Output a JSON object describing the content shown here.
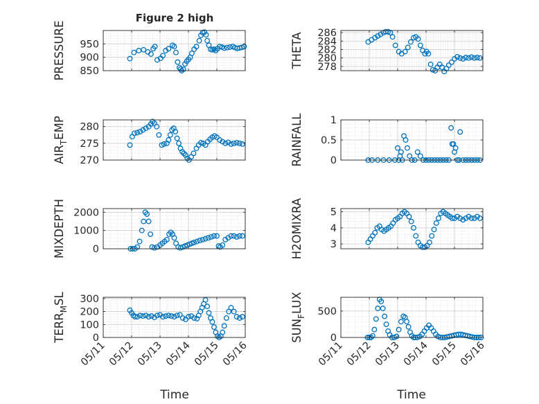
{
  "title": "Figure 2 high",
  "xlabel": "Time",
  "x_ticks": [
    "05/11",
    "05/12",
    "05/13",
    "05/14",
    "05/15",
    "05/16"
  ],
  "chart_data": [
    {
      "type": "scatter",
      "title": "Figure 2 high",
      "ylabel": "PRESSURE",
      "ylabel_sub": "",
      "ylabel_post": "",
      "ylim": [
        850,
        1000
      ],
      "yticks": [
        850,
        900,
        950
      ],
      "xlim": [
        "05/11",
        "05/16"
      ],
      "x_points": [
        [
          0.94,
          1.08,
          1.25,
          1.42,
          1.57,
          1.68,
          1.76,
          1.82,
          1.9,
          2.02,
          2.1,
          2.2,
          2.3,
          2.44,
          2.5,
          2.56,
          2.62,
          2.68,
          2.72,
          2.76,
          2.82,
          2.88,
          2.94,
          3.0,
          3.06,
          3.12,
          3.2,
          3.28,
          3.38,
          3.44,
          3.5,
          3.56,
          3.62,
          3.66,
          3.72,
          3.78,
          3.84,
          3.9,
          3.96,
          4.02,
          4.1,
          4.18,
          4.26,
          4.36,
          4.46,
          4.56,
          4.64,
          4.72,
          4.8,
          4.88,
          4.96
        ]
      ],
      "y_points": [
        [
          895,
          918,
          925,
          928,
          920,
          912,
          932,
          940,
          890,
          896,
          906,
          925,
          932,
          945,
          940,
          918,
          882,
          862,
          856,
          850,
          855,
          875,
          885,
          892,
          900,
          915,
          930,
          940,
          962,
          982,
          992,
          994,
          984,
          962,
          945,
          930,
          928,
          930,
          925,
          932,
          940,
          938,
          934,
          936,
          938,
          940,
          936,
          933,
          935,
          937,
          940
        ]
      ]
    },
    {
      "type": "scatter",
      "ylabel": "THETA",
      "ylabel_sub": "",
      "ylabel_post": "",
      "ylim": [
        277,
        286.5
      ],
      "yticks": [
        278,
        280,
        282,
        284,
        286
      ],
      "xlim": [
        "05/11",
        "05/16"
      ],
      "x_points": [
        [
          0.96,
          1.08,
          1.2,
          1.3,
          1.4,
          1.5,
          1.58,
          1.66,
          1.74,
          1.82,
          1.92,
          2.04,
          2.14,
          2.26,
          2.36,
          2.46,
          2.56,
          2.64,
          2.72,
          2.8,
          2.88,
          2.96,
          3.02,
          3.08,
          3.16,
          3.24,
          3.32,
          3.4,
          3.48,
          3.56,
          3.64,
          3.72,
          3.8,
          3.9,
          4.0,
          4.1,
          4.2,
          4.3,
          4.4,
          4.5,
          4.6,
          4.7,
          4.8,
          4.9
        ]
      ],
      "y_points": [
        [
          283.8,
          284.3,
          284.8,
          285.2,
          285.6,
          286.0,
          286.2,
          286.2,
          286.0,
          285.0,
          283.0,
          281.5,
          281.0,
          281.5,
          282.5,
          283.8,
          284.8,
          285.0,
          284.5,
          283.0,
          281.8,
          281.0,
          281.5,
          281.0,
          278.5,
          277.2,
          277.0,
          277.8,
          278.5,
          277.8,
          276.8,
          277.5,
          278.3,
          279.0,
          279.8,
          280.3,
          280.0,
          279.8,
          280.1,
          280.0,
          280.2,
          280.0,
          280.1,
          280.0
        ]
      ]
    },
    {
      "type": "scatter",
      "ylabel": "AIR",
      "ylabel_sub": "T",
      "ylabel_post": "EMP",
      "ylim": [
        270,
        282
      ],
      "yticks": [
        270,
        275,
        280
      ],
      "xlim": [
        "05/11",
        "05/16"
      ],
      "x_points": [
        [
          0.94,
          1.02,
          1.1,
          1.2,
          1.3,
          1.4,
          1.5,
          1.6,
          1.68,
          1.74,
          1.8,
          1.88,
          1.96,
          2.06,
          2.14,
          2.24,
          2.3,
          2.36,
          2.42,
          2.48,
          2.54,
          2.6,
          2.66,
          2.72,
          2.78,
          2.84,
          2.9,
          2.96,
          3.02,
          3.1,
          3.18,
          3.28,
          3.36,
          3.44,
          3.52,
          3.6,
          3.68,
          3.76,
          3.84,
          3.92,
          4.0,
          4.1,
          4.2,
          4.3,
          4.4,
          4.5,
          4.6,
          4.7,
          4.8,
          4.9
        ]
      ],
      "y_points": [
        [
          274.5,
          277.0,
          278.0,
          278.2,
          278.5,
          279.0,
          279.5,
          280.0,
          280.8,
          281.5,
          281.0,
          280.0,
          277.5,
          274.5,
          274.8,
          275.0,
          276.0,
          277.5,
          279.0,
          279.5,
          278.5,
          276.5,
          275.0,
          273.5,
          272.5,
          272.0,
          271.5,
          270.5,
          270.0,
          271.0,
          272.0,
          273.5,
          274.5,
          275.2,
          275.0,
          274.5,
          275.5,
          276.2,
          276.8,
          277.2,
          276.8,
          276.0,
          275.5,
          275.0,
          275.3,
          274.8,
          275.0,
          275.2,
          275.0,
          274.8
        ]
      ]
    },
    {
      "type": "scatter",
      "ylabel": "RAINFALL",
      "ylabel_sub": "",
      "ylabel_post": "",
      "ylim": [
        0,
        1
      ],
      "yticks": [
        0,
        0.5,
        1
      ],
      "xlim": [
        "05/11",
        "05/16"
      ],
      "x_points": [
        [
          0.96,
          1.1,
          1.3,
          1.5,
          1.7,
          1.9,
          2.0,
          2.04,
          2.08,
          2.12,
          2.16,
          2.22,
          2.28,
          2.34,
          2.42,
          2.5,
          2.6,
          2.7,
          2.8,
          2.9,
          3.0,
          3.1,
          3.2,
          3.3,
          3.4,
          3.5,
          3.6,
          3.7,
          3.8,
          3.88,
          3.92,
          3.96,
          4.0,
          4.04,
          4.1,
          4.16,
          4.2,
          4.3,
          4.4,
          4.5,
          4.6,
          4.7,
          4.8,
          4.9
        ]
      ],
      "y_points": [
        [
          0,
          0,
          0,
          0,
          0,
          0,
          0.3,
          0,
          0.1,
          0.2,
          0,
          0.6,
          0.5,
          0.3,
          0.1,
          0,
          0,
          0.2,
          0.1,
          0,
          0,
          0,
          0,
          0,
          0,
          0,
          0,
          0,
          0,
          0.8,
          0.4,
          0.4,
          0.2,
          0.3,
          0,
          0,
          0.7,
          0,
          0,
          0,
          0,
          0,
          0,
          0
        ]
      ]
    },
    {
      "type": "scatter",
      "ylabel": "MIXDEPTH",
      "ylabel_sub": "",
      "ylabel_post": "",
      "ylim": [
        0,
        2200
      ],
      "yticks": [
        0,
        1000,
        2000
      ],
      "xlim": [
        "05/11",
        "05/16"
      ],
      "x_points": [
        [
          0.96,
          1.04,
          1.12,
          1.2,
          1.28,
          1.36,
          1.42,
          1.48,
          1.54,
          1.6,
          1.66,
          1.72,
          1.8,
          1.9,
          2.0,
          2.08,
          2.16,
          2.24,
          2.32,
          2.38,
          2.44,
          2.5,
          2.56,
          2.64,
          2.72,
          2.8,
          2.88,
          2.96,
          3.04,
          3.12,
          3.2,
          3.3,
          3.4,
          3.5,
          3.6,
          3.7,
          3.8,
          3.9,
          4.0,
          4.06,
          4.12,
          4.2,
          4.3,
          4.4,
          4.5,
          4.6,
          4.7,
          4.8,
          4.9
        ]
      ],
      "y_points": [
        [
          0,
          0,
          0,
          100,
          400,
          1000,
          1500,
          2000,
          1900,
          1500,
          800,
          100,
          50,
          100,
          200,
          300,
          400,
          500,
          800,
          900,
          800,
          600,
          300,
          100,
          50,
          100,
          150,
          200,
          250,
          300,
          350,
          400,
          450,
          500,
          550,
          600,
          650,
          700,
          700,
          150,
          100,
          200,
          500,
          600,
          700,
          700,
          650,
          700,
          700
        ]
      ]
    },
    {
      "type": "scatter",
      "ylabel": "H2OMIXRA",
      "ylabel_sub": "",
      "ylabel_post": "",
      "ylim": [
        2.7,
        5.2
      ],
      "yticks": [
        3,
        4,
        5
      ],
      "xlim": [
        "05/11",
        "05/16"
      ],
      "x_points": [
        [
          0.96,
          1.04,
          1.12,
          1.2,
          1.28,
          1.36,
          1.44,
          1.52,
          1.6,
          1.68,
          1.76,
          1.84,
          1.92,
          2.0,
          2.08,
          2.16,
          2.24,
          2.32,
          2.4,
          2.48,
          2.56,
          2.64,
          2.72,
          2.8,
          2.88,
          2.96,
          3.04,
          3.12,
          3.2,
          3.28,
          3.36,
          3.44,
          3.52,
          3.6,
          3.68,
          3.76,
          3.84,
          3.92,
          4.0,
          4.1,
          4.2,
          4.3,
          4.4,
          4.5,
          4.6,
          4.7,
          4.8,
          4.9
        ]
      ],
      "y_points": [
        [
          3.1,
          3.3,
          3.5,
          3.7,
          4.0,
          4.1,
          3.9,
          3.8,
          3.9,
          4.0,
          4.1,
          4.3,
          4.5,
          4.6,
          4.7,
          4.9,
          5.0,
          4.9,
          4.7,
          4.4,
          4.0,
          3.5,
          3.1,
          2.9,
          2.8,
          2.8,
          2.9,
          3.1,
          3.5,
          3.9,
          4.3,
          4.6,
          4.9,
          5.0,
          4.9,
          4.8,
          4.7,
          4.6,
          4.6,
          4.7,
          4.6,
          4.5,
          4.6,
          4.7,
          4.6,
          4.6,
          4.7,
          4.6
        ]
      ]
    },
    {
      "type": "scatter",
      "ylabel": "TERR",
      "ylabel_sub": "M",
      "ylabel_post": "SL",
      "ylim": [
        0,
        310
      ],
      "yticks": [
        0,
        100,
        200,
        300
      ],
      "xlim": [
        "05/11",
        "05/16"
      ],
      "x_points": [
        [
          0.94,
          1.0,
          1.06,
          1.12,
          1.2,
          1.3,
          1.4,
          1.5,
          1.6,
          1.7,
          1.8,
          1.9,
          2.0,
          2.1,
          2.2,
          2.3,
          2.4,
          2.5,
          2.6,
          2.7,
          2.8,
          2.9,
          3.0,
          3.1,
          3.2,
          3.3,
          3.36,
          3.42,
          3.48,
          3.54,
          3.6,
          3.66,
          3.72,
          3.78,
          3.84,
          3.9,
          3.96,
          4.02,
          4.08,
          4.14,
          4.2,
          4.26,
          4.34,
          4.42,
          4.5,
          4.6,
          4.7,
          4.8,
          4.9
        ]
      ],
      "y_points": [
        [
          210,
          190,
          170,
          160,
          160,
          170,
          165,
          170,
          160,
          165,
          155,
          170,
          175,
          160,
          165,
          170,
          165,
          160,
          170,
          175,
          150,
          140,
          160,
          165,
          150,
          145,
          170,
          200,
          230,
          260,
          290,
          240,
          190,
          150,
          120,
          80,
          40,
          10,
          0,
          10,
          40,
          90,
          150,
          200,
          230,
          200,
          160,
          150,
          160
        ]
      ]
    },
    {
      "type": "scatter",
      "ylabel": "SUN",
      "ylabel_sub": "F",
      "ylabel_post": "LUX",
      "ylim": [
        0,
        760
      ],
      "yticks": [
        0,
        500
      ],
      "xlim": [
        "05/11",
        "05/16"
      ],
      "x_points": [
        [
          0.94,
          1.0,
          1.06,
          1.12,
          1.18,
          1.24,
          1.3,
          1.36,
          1.42,
          1.48,
          1.54,
          1.6,
          1.66,
          1.72,
          1.8,
          1.88,
          1.96,
          2.04,
          2.12,
          2.2,
          2.26,
          2.32,
          2.38,
          2.44,
          2.5,
          2.56,
          2.62,
          2.7,
          2.78,
          2.86,
          2.94,
          3.02,
          3.1,
          3.18,
          3.26,
          3.34,
          3.42,
          3.5,
          3.58,
          3.66,
          3.74,
          3.82,
          3.9,
          3.98,
          4.06,
          4.14,
          4.22,
          4.3,
          4.38,
          4.46,
          4.54,
          4.62,
          4.7,
          4.78,
          4.86,
          4.94
        ]
      ],
      "y_points": [
        [
          0,
          0,
          0,
          30,
          150,
          350,
          550,
          720,
          680,
          550,
          400,
          250,
          120,
          50,
          0,
          0,
          20,
          150,
          300,
          400,
          380,
          300,
          200,
          100,
          30,
          0,
          0,
          0,
          20,
          60,
          120,
          180,
          230,
          180,
          120,
          60,
          20,
          0,
          0,
          0,
          10,
          20,
          30,
          40,
          50,
          60,
          60,
          50,
          40,
          30,
          20,
          10,
          0,
          0,
          0,
          0
        ]
      ]
    }
  ]
}
